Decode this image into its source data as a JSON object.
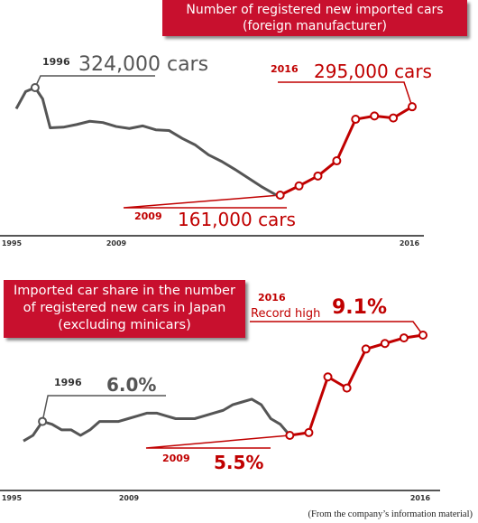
{
  "chart_data": [
    {
      "type": "line",
      "title": [
        "Number of registered new imported cars",
        "(foreign manufacturer)"
      ],
      "x_ticks": [
        "1995",
        "2009",
        "2016"
      ],
      "series": [
        {
          "x": [
            1995.0,
            1995.5,
            1996.0,
            1996.4,
            1996.8,
            1997.5,
            1998.2,
            1998.9,
            1999.6,
            2000.3,
            2001.0,
            2001.7,
            2002.4,
            2003.1,
            2003.8,
            2004.5,
            2005.2,
            2005.9,
            2006.6,
            2007.3,
            2008.0,
            2008.8
          ],
          "y": [
            292,
            318,
            324,
            307,
            263,
            264,
            268,
            273,
            271,
            265,
            262,
            266,
            260,
            259,
            247,
            237,
            222,
            212,
            200,
            187,
            174,
            161
          ]
        },
        {
          "x": [
            2009,
            2010,
            2011,
            2012,
            2013,
            2014,
            2015,
            2016
          ],
          "y": [
            161,
            175,
            190,
            213,
            276,
            281,
            278,
            295
          ]
        }
      ],
      "annotations": {
        "start_year": "1996",
        "start_value": "324,000 cars",
        "low_year": "2009",
        "low_value": "161,000 cars",
        "end_year": "2016",
        "end_value": "295,000 cars"
      },
      "colors": {
        "pre_2009": "#555555",
        "post_2009": "#c00000"
      }
    },
    {
      "type": "line",
      "title": [
        "Imported car share in the number",
        "of registered new cars in Japan",
        "(excluding minicars)"
      ],
      "x_ticks": [
        "1995",
        "2009",
        "2016"
      ],
      "series": [
        {
          "x": [
            1995.0,
            1995.5,
            1996.0,
            1996.5,
            1997.0,
            1997.5,
            1998.0,
            1998.5,
            1999.0,
            1999.5,
            2000.0,
            2000.5,
            2001.0,
            2001.5,
            2002.0,
            2002.5,
            2003.0,
            2003.5,
            2004.0,
            2004.5,
            2005.0,
            2005.5,
            2006.0,
            2006.5,
            2007.0,
            2007.5,
            2008.0,
            2008.5
          ],
          "y": [
            5.3,
            5.5,
            6.0,
            5.9,
            5.7,
            5.7,
            5.5,
            5.7,
            6.0,
            6.0,
            6.0,
            6.1,
            6.2,
            6.3,
            6.3,
            6.2,
            6.1,
            6.1,
            6.1,
            6.2,
            6.3,
            6.4,
            6.6,
            6.7,
            6.8,
            6.6,
            6.1,
            5.9
          ]
        },
        {
          "x": [
            2009,
            2010,
            2011,
            2012,
            2013,
            2014,
            2015,
            2016
          ],
          "y": [
            5.5,
            5.6,
            7.6,
            7.2,
            8.6,
            8.8,
            9.0,
            9.1
          ]
        }
      ],
      "annotations": {
        "start_year": "1996",
        "start_value": "6.0%",
        "low_year": "2009",
        "low_value": "5.5%",
        "end_year": "2016",
        "end_label": "Record high",
        "end_value": "9.1%"
      },
      "colors": {
        "pre_2009": "#555555",
        "post_2009": "#c00000"
      }
    }
  ],
  "source_note": "(From the company’s information material)"
}
